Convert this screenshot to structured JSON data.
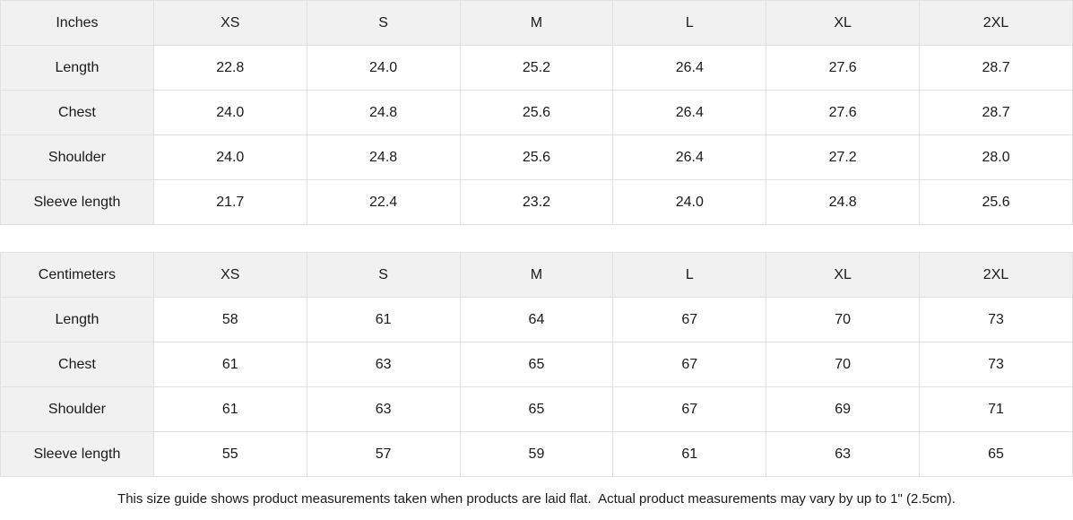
{
  "tables": [
    {
      "unit_label": "Inches",
      "sizes": [
        "XS",
        "S",
        "M",
        "L",
        "XL",
        "2XL"
      ],
      "rows": [
        {
          "label": "Length",
          "values": [
            "22.8",
            "24.0",
            "25.2",
            "26.4",
            "27.6",
            "28.7"
          ]
        },
        {
          "label": "Chest",
          "values": [
            "24.0",
            "24.8",
            "25.6",
            "26.4",
            "27.6",
            "28.7"
          ]
        },
        {
          "label": "Shoulder",
          "values": [
            "24.0",
            "24.8",
            "25.6",
            "26.4",
            "27.2",
            "28.0"
          ]
        },
        {
          "label": "Sleeve length",
          "values": [
            "21.7",
            "22.4",
            "23.2",
            "24.0",
            "24.8",
            "25.6"
          ]
        }
      ]
    },
    {
      "unit_label": "Centimeters",
      "sizes": [
        "XS",
        "S",
        "M",
        "L",
        "XL",
        "2XL"
      ],
      "rows": [
        {
          "label": "Length",
          "values": [
            "58",
            "61",
            "64",
            "67",
            "70",
            "73"
          ]
        },
        {
          "label": "Chest",
          "values": [
            "61",
            "63",
            "65",
            "67",
            "70",
            "73"
          ]
        },
        {
          "label": "Shoulder",
          "values": [
            "61",
            "63",
            "65",
            "67",
            "69",
            "71"
          ]
        },
        {
          "label": "Sleeve length",
          "values": [
            "55",
            "57",
            "59",
            "61",
            "63",
            "65"
          ]
        }
      ]
    }
  ],
  "footnote": "This size guide shows product measurements taken when products are laid flat.  Actual product measurements may vary by up to 1\" (2.5cm).",
  "colors": {
    "header_bg": "#f1f1f1",
    "border": "#e0e0e0",
    "text": "#1a1a1a",
    "page_bg": "#ffffff"
  }
}
